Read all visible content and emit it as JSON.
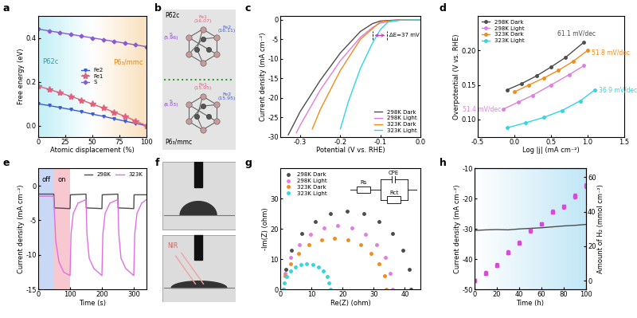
{
  "chart_data": [
    {
      "type": "line",
      "title": "a",
      "xlabel": "Atomic displacement (%)",
      "ylabel": "Free energy (eV)",
      "xlim": [
        0,
        100
      ],
      "xticks": [
        0,
        25,
        50,
        75,
        100
      ],
      "ylim": [
        -0.05,
        0.5
      ],
      "yticks": [
        0.0,
        0.2,
        0.4
      ],
      "x": [
        0,
        10,
        20,
        30,
        40,
        50,
        60,
        70,
        80,
        90,
        100
      ],
      "legend": "center",
      "annotations": [
        "P6̄2c",
        "P6₃/mmc"
      ],
      "series": [
        {
          "name": "Fe2",
          "color": "#3a5bd9",
          "marker": "triangle_down",
          "line_style": "solid",
          "values": [
            0.1,
            0.092,
            0.083,
            0.074,
            0.064,
            0.053,
            0.043,
            0.032,
            0.021,
            0.011,
            0.0
          ]
        },
        {
          "name": "Fe1",
          "color": "#e0607e",
          "marker": "star",
          "line_style": "solid",
          "values": [
            0.18,
            0.166,
            0.15,
            0.134,
            0.117,
            0.099,
            0.081,
            0.062,
            0.043,
            0.022,
            0.0
          ]
        },
        {
          "name": "S",
          "color": "#8a5ad6",
          "marker": "diamond",
          "line_style": "solid",
          "values": [
            0.44,
            0.432,
            0.424,
            0.416,
            0.408,
            0.4,
            0.392,
            0.384,
            0.376,
            0.368,
            0.36
          ]
        }
      ]
    },
    {
      "type": "diagram",
      "title": "b",
      "structures": [
        {
          "name": "P6̄2c",
          "labels": [
            "S\n(5.96)",
            "Fe1\n(16.07)",
            "Fe2\n(16.11)"
          ]
        },
        {
          "name": "P6₃/mmc",
          "labels": [
            "S\n(6.03)",
            "Fe1\n(15.95)",
            "Fe2\n(15.95)"
          ]
        }
      ]
    },
    {
      "type": "line",
      "title": "c",
      "xlabel": "Potential (V vs. RHE)",
      "ylabel": "Current density (mA cm⁻²)",
      "xlim": [
        -0.35,
        0.0
      ],
      "xticks": [
        -0.3,
        -0.2,
        -0.1,
        0.0
      ],
      "ylim": [
        -30,
        1
      ],
      "yticks": [
        -30,
        -25,
        -20,
        -15,
        -10,
        -5,
        0
      ],
      "legend": "lower right",
      "annotation": {
        "text": "ΔE=37 mV",
        "x": [
          -0.12,
          -0.083
        ],
        "y": -4
      },
      "series": [
        {
          "name": "298K Dark",
          "color": "#4d4d4d",
          "marker": "none",
          "line_style": "solid",
          "x": [
            0.0,
            -0.05,
            -0.1,
            -0.12,
            -0.15,
            -0.2,
            -0.25,
            -0.3,
            -0.33
          ],
          "values": [
            0,
            0,
            -0.3,
            -1,
            -3,
            -8.5,
            -15.5,
            -23.5,
            -29.5
          ]
        },
        {
          "name": "298K Light",
          "color": "#e07ee0",
          "marker": "none",
          "line_style": "solid",
          "x": [
            0.0,
            -0.05,
            -0.1,
            -0.12,
            -0.15,
            -0.2,
            -0.25,
            -0.3,
            -0.31
          ],
          "values": [
            0,
            -0.05,
            -0.8,
            -2,
            -4.5,
            -10.5,
            -18,
            -27,
            -29
          ]
        },
        {
          "name": "323K Dark",
          "color": "#f08c1e",
          "marker": "none",
          "line_style": "solid",
          "x": [
            0.0,
            -0.05,
            -0.1,
            -0.15,
            -0.2,
            -0.25,
            -0.27
          ],
          "values": [
            0,
            -0.05,
            -0.5,
            -5,
            -13,
            -23,
            -28
          ]
        },
        {
          "name": "323K Light",
          "color": "#2fd6e6",
          "marker": "none",
          "line_style": "solid",
          "x": [
            0.0,
            -0.05,
            -0.08,
            -0.1,
            -0.12,
            -0.15,
            -0.18,
            -0.2
          ],
          "values": [
            0,
            -0.1,
            -0.5,
            -2.5,
            -6,
            -12.5,
            -21,
            -28
          ]
        }
      ]
    },
    {
      "type": "line",
      "title": "d",
      "xlabel": "Log |j| (mA cm⁻²)",
      "ylabel": "Overpotential (V vs. RHE)",
      "xlim": [
        -0.5,
        1.5
      ],
      "xticks": [
        -0.5,
        0.0,
        0.5,
        1.0,
        1.5
      ],
      "ylim": [
        0.075,
        0.25
      ],
      "yticks": [
        {
          "value": 0.1,
          "label": "0.10"
        },
        {
          "value": 0.15,
          "label": "0.15"
        },
        {
          "value": 0.2,
          "label": "0.20"
        }
      ],
      "legend": "upper left",
      "series": [
        {
          "name": "298K Dark",
          "color": "#4d4d4d",
          "marker": "circle",
          "line_style": "solid",
          "annotation": "61.1 mV/dec",
          "x": [
            -0.1,
            0.1,
            0.3,
            0.5,
            0.7,
            0.95
          ],
          "values": [
            0.143,
            0.152,
            0.163,
            0.176,
            0.19,
            0.212
          ]
        },
        {
          "name": "298K Light",
          "color": "#e07ee0",
          "marker": "circle",
          "line_style": "solid",
          "annotation": "51.4 mV/dec",
          "x": [
            -0.15,
            0.05,
            0.25,
            0.5,
            0.75,
            0.95
          ],
          "values": [
            0.115,
            0.125,
            0.135,
            0.15,
            0.165,
            0.178
          ]
        },
        {
          "name": "323K Dark",
          "color": "#f08c1e",
          "marker": "circle",
          "line_style": "solid",
          "annotation": "51.8 mV/dec",
          "x": [
            0.0,
            0.2,
            0.4,
            0.6,
            0.8,
            1.0
          ],
          "values": [
            0.14,
            0.15,
            0.16,
            0.171,
            0.184,
            0.2
          ]
        },
        {
          "name": "323K Light",
          "color": "#2fd6e6",
          "marker": "circle",
          "line_style": "solid",
          "annotation": "36.9 mV/dec",
          "x": [
            -0.1,
            0.15,
            0.4,
            0.65,
            0.9,
            1.1
          ],
          "values": [
            0.088,
            0.095,
            0.103,
            0.113,
            0.127,
            0.143
          ]
        }
      ]
    },
    {
      "type": "line",
      "title": "e",
      "xlabel": "Time (s)",
      "ylabel": "Current density (mA cm⁻²)",
      "xlim": [
        0,
        340
      ],
      "xticks": [
        0,
        100,
        200,
        300
      ],
      "ylim": [
        -15,
        2.5
      ],
      "yticks": [
        -15,
        -10,
        -5,
        0
      ],
      "legend": "upper right",
      "annotations": [
        {
          "text": "off",
          "x": [
            0,
            50
          ]
        },
        {
          "text": "on",
          "x": [
            50,
            100
          ]
        }
      ],
      "series": [
        {
          "name": "298K",
          "color": "#4d4d4d",
          "marker": "none",
          "line_style": "solid",
          "x": [
            0,
            49,
            51,
            100,
            101,
            150,
            151,
            200,
            201,
            250,
            251,
            300,
            301,
            340
          ],
          "values": [
            -1.2,
            -1.2,
            -3.2,
            -3.3,
            -1.3,
            -1.2,
            -3.2,
            -3.3,
            -1.3,
            -1.2,
            -3.2,
            -3.3,
            -1.3,
            -1.3
          ]
        },
        {
          "name": "323K",
          "color": "#e06fe0",
          "marker": "none",
          "line_style": "solid",
          "x": [
            0,
            48,
            50,
            55,
            65,
            80,
            100,
            103,
            110,
            125,
            150,
            153,
            160,
            175,
            200,
            203,
            210,
            225,
            250,
            253,
            260,
            275,
            300,
            303,
            310,
            325,
            340
          ],
          "values": [
            -1.5,
            -1.5,
            -3,
            -8,
            -11,
            -12.5,
            -13,
            -7,
            -4,
            -2.5,
            -2,
            -7,
            -10.5,
            -12,
            -13,
            -7,
            -4,
            -2.5,
            -2,
            -7,
            -10.5,
            -12,
            -13,
            -7,
            -4,
            -2.5,
            -2
          ]
        }
      ]
    },
    {
      "type": "image",
      "title": "f",
      "annotations": [
        "NIR"
      ]
    },
    {
      "type": "scatter",
      "title": "g",
      "xlabel": "Re(Z) (ohm)",
      "ylabel": "-Im(Z) (ohm)",
      "xlim": [
        0,
        45
      ],
      "xticks": [
        0,
        10,
        20,
        30,
        40
      ],
      "ylim": [
        0,
        40
      ],
      "yticks": [
        0,
        10,
        20,
        30
      ],
      "legend": "upper left",
      "annotations": [
        "Rs",
        "CPE",
        "Rct"
      ],
      "series": [
        {
          "name": "298K Dark",
          "color": "#4d4d4d",
          "marker": "circle",
          "x": [
            1.0,
            1.7,
            3.7,
            7.0,
            11.3,
            16.2,
            21.5,
            26.8,
            31.8,
            36.0,
            39.3,
            41.3,
            42.0
          ],
          "values": [
            0,
            6.7,
            13.0,
            18.4,
            22.5,
            25.1,
            26.0,
            25.1,
            22.5,
            18.4,
            13.0,
            6.7,
            0
          ]
        },
        {
          "name": "298K Light",
          "color": "#e07ee0",
          "marker": "circle",
          "x": [
            1.0,
            1.6,
            3.3,
            6.1,
            9.8,
            14.0,
            18.5,
            23.0,
            27.3,
            30.9,
            33.7,
            35.4,
            36.0
          ],
          "values": [
            0,
            5.4,
            10.5,
            14.8,
            18.2,
            20.3,
            21,
            20.3,
            18.2,
            14.8,
            10.5,
            5.4,
            0
          ]
        },
        {
          "name": "323K Dark",
          "color": "#f08c1e",
          "marker": "circle",
          "x": [
            1.0,
            1.6,
            3.2,
            5.8,
            9.3,
            13.2,
            17.5,
            21.8,
            25.8,
            29.2,
            31.8,
            33.4,
            34.0
          ],
          "values": [
            0,
            4.4,
            8.5,
            12.0,
            14.7,
            16.4,
            17,
            16.4,
            14.7,
            12.0,
            8.5,
            4.4,
            0
          ]
        },
        {
          "name": "323K Light",
          "color": "#2fd6e6",
          "marker": "circle",
          "x": [
            1.0,
            1.3,
            2.0,
            3.2,
            4.8,
            6.6,
            8.5,
            10.4,
            12.3,
            13.8,
            15.0,
            15.7,
            16.0
          ],
          "values": [
            0,
            2.2,
            4.3,
            6.0,
            7.4,
            8.2,
            8.5,
            8.2,
            7.4,
            6.0,
            4.3,
            2.2,
            0
          ]
        }
      ]
    },
    {
      "type": "line",
      "title": "h",
      "xlabel": "Time (h)",
      "ylabel": "Current density (mA cm⁻²)",
      "y2label": "Amount of H₂ (mmol cm⁻²)",
      "xlim": [
        0,
        100
      ],
      "xticks": [
        0,
        20,
        40,
        60,
        80,
        100
      ],
      "ylim": [
        -50,
        -10
      ],
      "yticks": [
        -50,
        -40,
        -30,
        -20,
        -10
      ],
      "y2lim": [
        -5,
        65
      ],
      "y2ticks": [
        0,
        20,
        40,
        60
      ],
      "series": [
        {
          "color": "#4d4d4d",
          "marker": "none",
          "line_style": "solid",
          "x": [
            0,
            10,
            20,
            30,
            40,
            50,
            60,
            70,
            80,
            90,
            100
          ],
          "values": [
            -30.5,
            -30.3,
            -30.2,
            -30.3,
            -30.0,
            -29.8,
            -29.6,
            -29.3,
            -29.0,
            -28.8,
            -28.5
          ]
        },
        {
          "type": "scatter",
          "axis": "y2",
          "color": "#d64ad6",
          "marker": "square",
          "line_style": "none",
          "x": [
            0,
            10,
            20,
            30,
            40,
            50,
            60,
            70,
            80,
            90,
            100
          ],
          "values": [
            0,
            4.5,
            9,
            16.5,
            22,
            29,
            33,
            40,
            43,
            49,
            55
          ],
          "errors": [
            1,
            1,
            1.2,
            1.2,
            1,
            1,
            1,
            1,
            1.2,
            1.5,
            1.5
          ]
        }
      ]
    }
  ]
}
